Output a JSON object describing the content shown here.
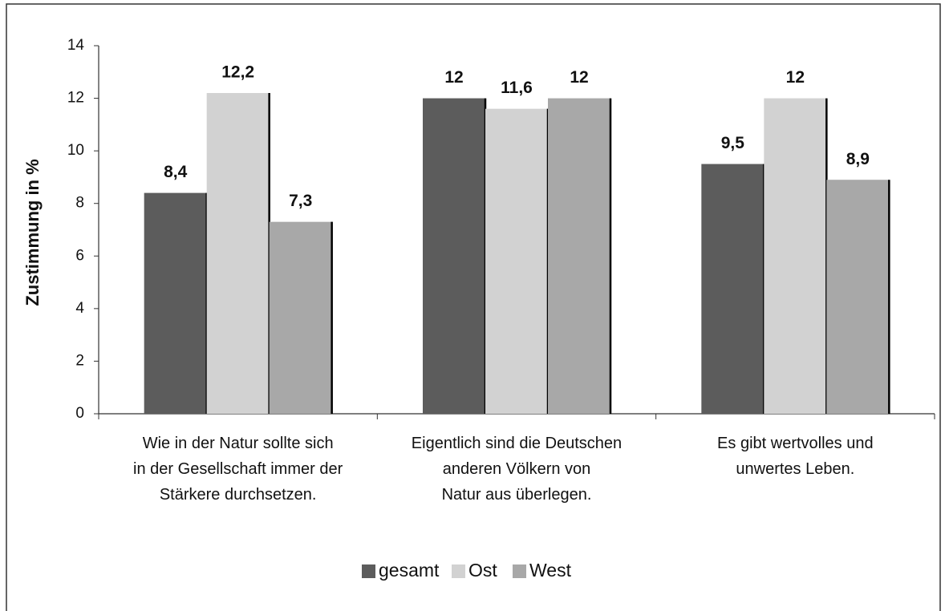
{
  "chart_data": {
    "type": "bar",
    "y_label": "Zustimmung in %",
    "categories": [
      "Wie in der Natur sollte sich\nin der Gesellschaft immer der\nStärkere durchsetzen.",
      "Eigentlich sind die Deutschen\nanderen Völkern von\nNatur aus überlegen.",
      "Es gibt wertvolles und\nunwertes Leben."
    ],
    "series": [
      {
        "name": "gesamt",
        "color": "#5c5c5c",
        "values": [
          8.4,
          12,
          9.5
        ],
        "value_labels": [
          "8,4",
          "12",
          "9,5"
        ]
      },
      {
        "name": "Ost",
        "color": "#d2d2d2",
        "values": [
          12.2,
          11.6,
          12
        ],
        "value_labels": [
          "12,2",
          "11,6",
          "12"
        ]
      },
      {
        "name": "West",
        "color": "#a8a8a8",
        "values": [
          7.3,
          12,
          8.9
        ],
        "value_labels": [
          "7,3",
          "12",
          "8,9"
        ]
      }
    ],
    "ylim": [
      0,
      14
    ],
    "yticks": [
      0,
      2,
      4,
      6,
      8,
      10,
      12,
      14
    ],
    "legend": "bottom"
  }
}
